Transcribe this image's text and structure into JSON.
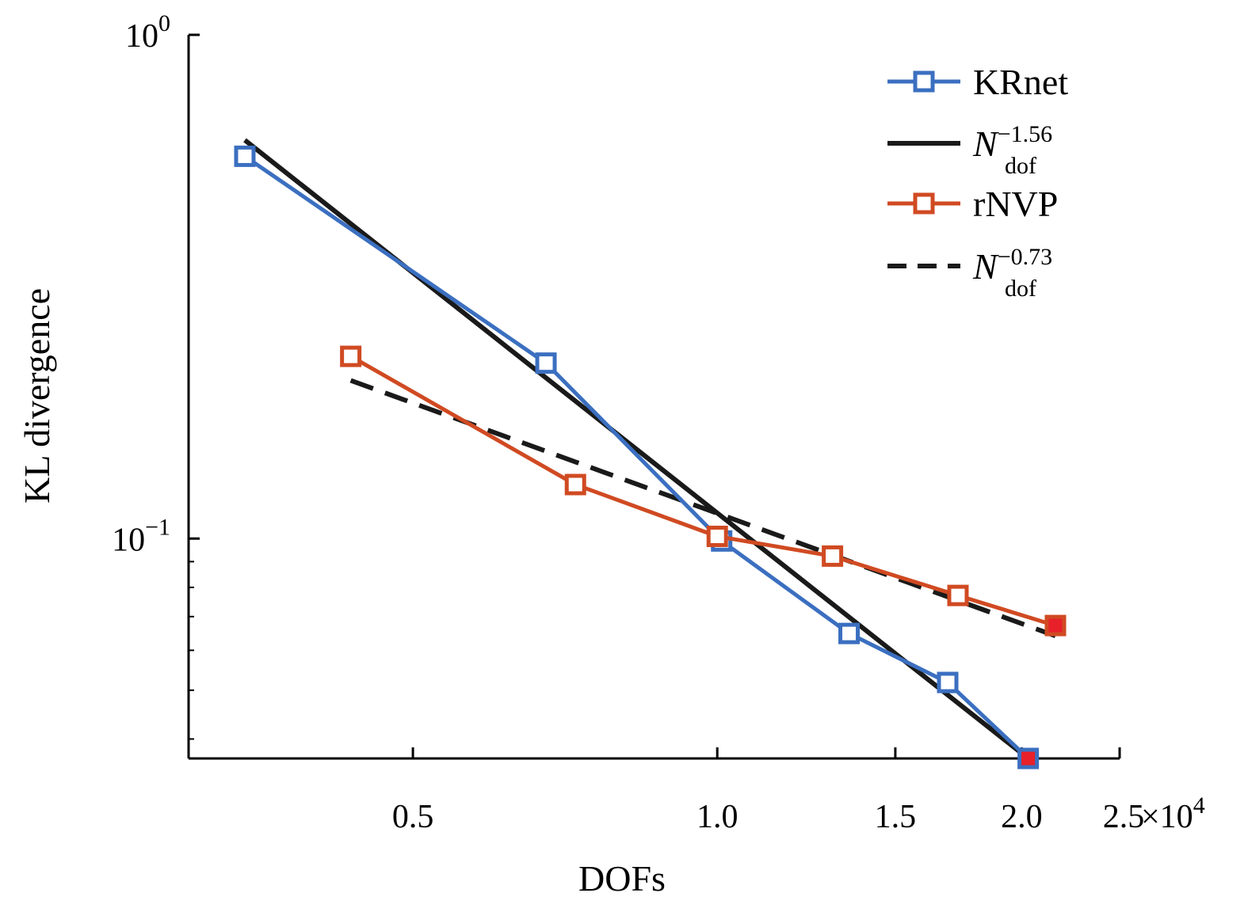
{
  "chart_data": {
    "type": "line",
    "xlabel": "DOFs",
    "ylabel": "KL divergence",
    "x_scale": "log",
    "y_scale": "log",
    "xlim": [
      0.3,
      2.5
    ],
    "ylim": [
      0.0366,
      1
    ],
    "x_multiplier": "×10",
    "x_multiplier_exp": "4",
    "x_ticks": [
      0.5,
      1.0,
      1.5,
      2.0,
      2.5
    ],
    "x_tick_labels": [
      "0.5",
      "1.0",
      "1.5",
      "2.0",
      "2.5"
    ],
    "y_ticks": [
      1,
      0.1
    ],
    "y_tick_labels": [
      {
        "base": "10",
        "exp": "0"
      },
      {
        "base": "10",
        "exp": "−1"
      }
    ],
    "grid": false,
    "legend_position": "top-right",
    "series": [
      {
        "name": "KRnet",
        "style": "line-square",
        "color": "#3b6fc0",
        "x": [
          0.341,
          0.677,
          1.01,
          1.35,
          1.69,
          2.03
        ],
        "y": [
          0.574,
          0.223,
          0.0989,
          0.0648,
          0.0518,
          0.0366
        ]
      },
      {
        "name": "N_dof^-1.56",
        "legend_base": "N",
        "legend_sub": "dof",
        "legend_sup": "−1.56",
        "style": "solid",
        "color": "#1a1a1a",
        "x": [
          0.341,
          2.03
        ],
        "y": [
          0.618,
          0.0366
        ]
      },
      {
        "name": "rNVP",
        "style": "line-square",
        "color": "#d04a22",
        "x": [
          0.434,
          0.724,
          1.0,
          1.3,
          1.73,
          2.16
        ],
        "y": [
          0.23,
          0.128,
          0.101,
          0.0923,
          0.0771,
          0.0672
        ]
      },
      {
        "name": "N_dof^-0.73",
        "legend_base": "N",
        "legend_sub": "dof",
        "legend_sup": "−0.73",
        "style": "dashed",
        "color": "#1a1a1a",
        "x": [
          0.434,
          2.16
        ],
        "y": [
          0.206,
          0.0641
        ]
      }
    ]
  }
}
